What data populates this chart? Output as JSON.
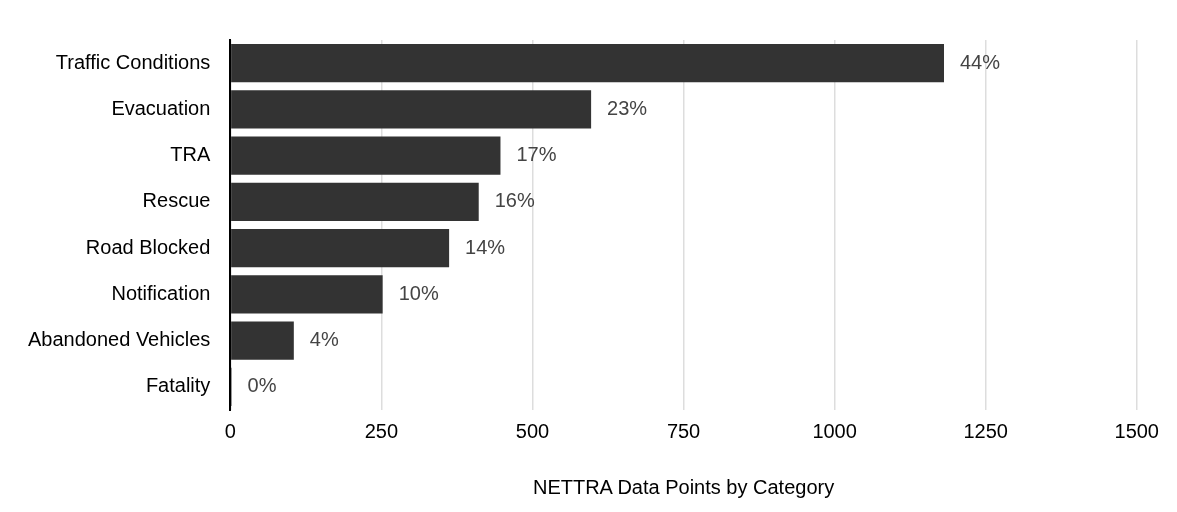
{
  "chart_data": {
    "type": "bar",
    "orientation": "horizontal",
    "xlabel": "NETTRA Data Points by Category",
    "categories": [
      "Traffic Conditions",
      "Evacuation",
      "TRA",
      "Rescue",
      "Road Blocked",
      "Notification",
      "Abandoned Vehicles",
      "Fatality"
    ],
    "values": [
      1181,
      597,
      447,
      411,
      362,
      252,
      105,
      2
    ],
    "annotations": [
      {
        "text": "44%",
        "x": 1181,
        "y": "Traffic Conditions"
      },
      {
        "text": "23%",
        "x": 597,
        "y": "Evacuation"
      },
      {
        "text": "17%",
        "x": 447,
        "y": "TRA"
      },
      {
        "text": "16%",
        "x": 411,
        "y": "Rescue"
      },
      {
        "text": "14%",
        "x": 362,
        "y": "Road Blocked"
      },
      {
        "text": "10%",
        "x": 252,
        "y": "Notification"
      },
      {
        "text": "4%",
        "x": 105,
        "y": "Abandoned Vehicles"
      },
      {
        "text": "0%",
        "x": 2,
        "y": "Fatality"
      }
    ],
    "color": "#333333",
    "xlim": [
      0,
      1500
    ],
    "xticks": [
      0,
      250,
      500,
      750,
      1000,
      1250,
      1500
    ],
    "grid": "x",
    "legend": false
  }
}
